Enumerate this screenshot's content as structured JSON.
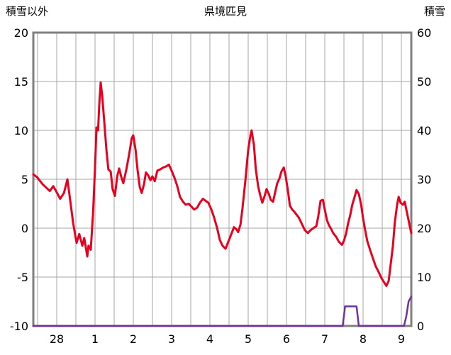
{
  "chart_data": {
    "type": "line",
    "title": "県境匹見",
    "left_axis_label": "積雪以外",
    "right_axis_label": "積雪",
    "left_axis": {
      "min": -10,
      "max": 20,
      "ticks": [
        20,
        15,
        10,
        5,
        0,
        -5,
        -10
      ]
    },
    "right_axis": {
      "min": 0,
      "max": 60,
      "ticks": [
        60,
        50,
        40,
        30,
        20,
        10,
        0
      ]
    },
    "x_axis": {
      "span_days": 9.87,
      "tick_labels": [
        "28",
        "1",
        "2",
        "3",
        "4",
        "5",
        "6",
        "7",
        "8",
        "9"
      ],
      "first_tick_t": 0.611,
      "tick_step": 1,
      "grid_start": 0.111,
      "grid_step": 0.5,
      "grid_count": 20
    },
    "colors": {
      "grid": "#a6a6a6",
      "border": "#808080",
      "text": "#000000",
      "background": "#ffffff",
      "temperature": "#e8001e",
      "snow": "#7030a0"
    },
    "series": [
      {
        "name": "積雪以外",
        "axis": "left",
        "color": "#e8001e",
        "width": 3,
        "points": [
          [
            0.0,
            5.5
          ],
          [
            0.1,
            5.2
          ],
          [
            0.24,
            4.5
          ],
          [
            0.43,
            3.8
          ],
          [
            0.52,
            4.3
          ],
          [
            0.62,
            3.6
          ],
          [
            0.7,
            3.0
          ],
          [
            0.8,
            3.6
          ],
          [
            0.89,
            5.0
          ],
          [
            0.94,
            3.5
          ],
          [
            1.04,
            0.5
          ],
          [
            1.13,
            -1.5
          ],
          [
            1.2,
            -0.6
          ],
          [
            1.28,
            -1.8
          ],
          [
            1.33,
            -1.0
          ],
          [
            1.41,
            -2.9
          ],
          [
            1.44,
            -1.8
          ],
          [
            1.5,
            -2.2
          ],
          [
            1.56,
            1.5
          ],
          [
            1.61,
            6.0
          ],
          [
            1.65,
            10.3
          ],
          [
            1.69,
            10.0
          ],
          [
            1.72,
            12.5
          ],
          [
            1.76,
            14.9
          ],
          [
            1.8,
            13.5
          ],
          [
            1.85,
            11.0
          ],
          [
            1.91,
            8.0
          ],
          [
            1.96,
            6.0
          ],
          [
            2.02,
            5.8
          ],
          [
            2.07,
            4.0
          ],
          [
            2.13,
            3.3
          ],
          [
            2.19,
            5.3
          ],
          [
            2.24,
            6.1
          ],
          [
            2.3,
            5.2
          ],
          [
            2.35,
            4.6
          ],
          [
            2.43,
            6.0
          ],
          [
            2.5,
            7.5
          ],
          [
            2.57,
            9.2
          ],
          [
            2.61,
            9.5
          ],
          [
            2.67,
            8.0
          ],
          [
            2.72,
            6.0
          ],
          [
            2.78,
            4.2
          ],
          [
            2.83,
            3.6
          ],
          [
            2.89,
            4.5
          ],
          [
            2.94,
            5.7
          ],
          [
            3.0,
            5.4
          ],
          [
            3.06,
            4.9
          ],
          [
            3.11,
            5.3
          ],
          [
            3.17,
            4.8
          ],
          [
            3.24,
            5.9
          ],
          [
            3.31,
            6.0
          ],
          [
            3.39,
            6.2
          ],
          [
            3.46,
            6.3
          ],
          [
            3.54,
            6.5
          ],
          [
            3.61,
            5.9
          ],
          [
            3.69,
            5.1
          ],
          [
            3.76,
            4.3
          ],
          [
            3.83,
            3.2
          ],
          [
            3.91,
            2.7
          ],
          [
            3.98,
            2.4
          ],
          [
            4.06,
            2.5
          ],
          [
            4.13,
            2.2
          ],
          [
            4.2,
            1.9
          ],
          [
            4.28,
            2.1
          ],
          [
            4.35,
            2.6
          ],
          [
            4.43,
            3.0
          ],
          [
            4.5,
            2.8
          ],
          [
            4.57,
            2.6
          ],
          [
            4.65,
            1.9
          ],
          [
            4.72,
            1.1
          ],
          [
            4.8,
            0.0
          ],
          [
            4.87,
            -1.2
          ],
          [
            4.94,
            -1.8
          ],
          [
            5.02,
            -2.1
          ],
          [
            5.09,
            -1.4
          ],
          [
            5.17,
            -0.6
          ],
          [
            5.24,
            0.1
          ],
          [
            5.3,
            -0.1
          ],
          [
            5.35,
            -0.4
          ],
          [
            5.41,
            0.4
          ],
          [
            5.46,
            2.0
          ],
          [
            5.54,
            5.0
          ],
          [
            5.61,
            8.0
          ],
          [
            5.67,
            9.5
          ],
          [
            5.7,
            10.0
          ],
          [
            5.76,
            8.5
          ],
          [
            5.81,
            6.0
          ],
          [
            5.87,
            4.3
          ],
          [
            5.93,
            3.3
          ],
          [
            5.98,
            2.6
          ],
          [
            6.04,
            3.3
          ],
          [
            6.09,
            4.0
          ],
          [
            6.15,
            3.5
          ],
          [
            6.2,
            2.9
          ],
          [
            6.26,
            2.7
          ],
          [
            6.31,
            3.6
          ],
          [
            6.37,
            4.6
          ],
          [
            6.43,
            5.1
          ],
          [
            6.48,
            5.8
          ],
          [
            6.54,
            6.2
          ],
          [
            6.59,
            5.3
          ],
          [
            6.65,
            3.8
          ],
          [
            6.7,
            2.3
          ],
          [
            6.76,
            1.9
          ],
          [
            6.81,
            1.7
          ],
          [
            6.87,
            1.4
          ],
          [
            6.93,
            1.1
          ],
          [
            6.98,
            0.7
          ],
          [
            7.04,
            0.2
          ],
          [
            7.09,
            -0.2
          ],
          [
            7.17,
            -0.5
          ],
          [
            7.24,
            -0.2
          ],
          [
            7.31,
            0.0
          ],
          [
            7.39,
            0.2
          ],
          [
            7.44,
            1.2
          ],
          [
            7.5,
            2.8
          ],
          [
            7.56,
            2.9
          ],
          [
            7.61,
            1.9
          ],
          [
            7.67,
            0.8
          ],
          [
            7.72,
            0.3
          ],
          [
            7.78,
            -0.1
          ],
          [
            7.83,
            -0.5
          ],
          [
            7.91,
            -0.9
          ],
          [
            7.98,
            -1.4
          ],
          [
            8.06,
            -1.7
          ],
          [
            8.11,
            -1.3
          ],
          [
            8.17,
            -0.5
          ],
          [
            8.22,
            0.5
          ],
          [
            8.28,
            1.4
          ],
          [
            8.33,
            2.4
          ],
          [
            8.39,
            3.2
          ],
          [
            8.44,
            3.9
          ],
          [
            8.5,
            3.5
          ],
          [
            8.56,
            2.4
          ],
          [
            8.61,
            1.0
          ],
          [
            8.67,
            -0.3
          ],
          [
            8.72,
            -1.3
          ],
          [
            8.8,
            -2.3
          ],
          [
            8.87,
            -3.1
          ],
          [
            8.94,
            -3.9
          ],
          [
            9.02,
            -4.5
          ],
          [
            9.09,
            -5.1
          ],
          [
            9.17,
            -5.6
          ],
          [
            9.22,
            -5.9
          ],
          [
            9.28,
            -5.4
          ],
          [
            9.33,
            -3.8
          ],
          [
            9.39,
            -1.8
          ],
          [
            9.44,
            0.6
          ],
          [
            9.5,
            2.4
          ],
          [
            9.54,
            3.2
          ],
          [
            9.59,
            2.6
          ],
          [
            9.65,
            2.4
          ],
          [
            9.7,
            2.7
          ],
          [
            9.74,
            1.9
          ],
          [
            9.8,
            0.8
          ],
          [
            9.83,
            0.2
          ],
          [
            9.87,
            -0.5
          ]
        ]
      },
      {
        "name": "積雪",
        "axis": "right",
        "color": "#7030a0",
        "width": 2.5,
        "points": [
          [
            0.0,
            0
          ],
          [
            8.08,
            0
          ],
          [
            8.14,
            4
          ],
          [
            8.44,
            4
          ],
          [
            8.5,
            0
          ],
          [
            9.68,
            0
          ],
          [
            9.74,
            2
          ],
          [
            9.8,
            5
          ],
          [
            9.87,
            6
          ]
        ]
      }
    ]
  }
}
